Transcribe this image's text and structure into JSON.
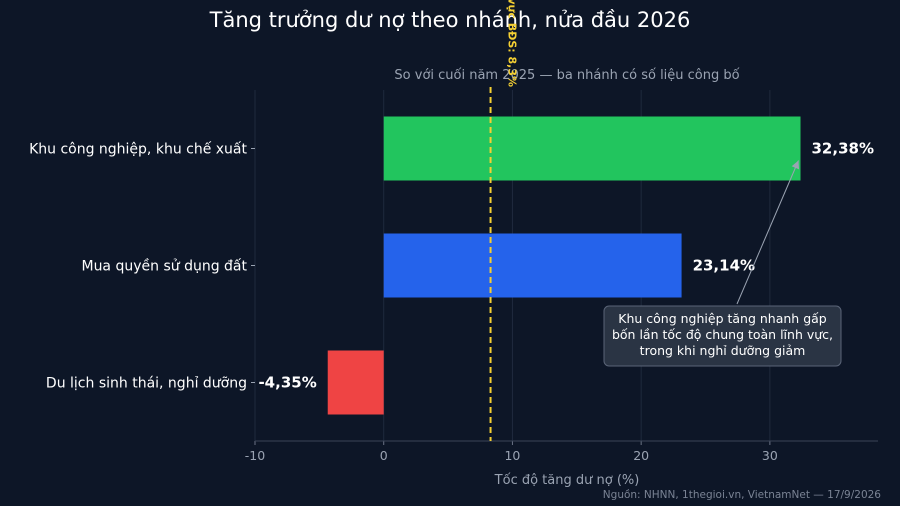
{
  "chart_data": {
    "type": "bar",
    "orientation": "horizontal",
    "title": "Tăng trưởng dư nợ theo nhánh, nửa đầu 2026",
    "subtitle": "So với cuối năm 2025 — ba nhánh có số liệu công bố",
    "xlabel": "Tốc độ tăng dư nợ (%)",
    "ylabel": "",
    "xlim": [
      -10,
      38.4
    ],
    "xticks": [
      -10,
      0,
      10,
      20,
      30
    ],
    "xtick_labels": [
      "-10",
      "0",
      "10",
      "20",
      "30"
    ],
    "grid": "vertical",
    "categories": [
      "Khu công nghiệp, khu chế xuất",
      "Mua quyền sử dụng đất",
      "Du lịch sinh thái, nghỉ dưỡng"
    ],
    "values": [
      32.38,
      23.14,
      -4.35
    ],
    "value_labels": [
      "32,38%",
      "23,14%",
      "-4,35%"
    ],
    "colors": [
      "#22c55e",
      "#2563eb",
      "#ef4444"
    ],
    "reference_line": {
      "value": 8.3,
      "label": "Toàn lĩnh vực BĐS: 8,3%",
      "color": "#f5d033",
      "style": "dashed"
    },
    "annotation": {
      "lines": [
        "Khu công nghiệp tăng nhanh gấp",
        "bốn lần tốc độ chung toàn lĩnh vực,",
        "trong khi nghỉ dưỡng giảm"
      ],
      "points_to": "Khu công nghiệp, khu chế xuất"
    },
    "source": "Nguồn: NHNN, 1thegioi.vn, VietnamNet — 17/9/2026"
  },
  "colors": {
    "background": "#0d1627",
    "text": "#ffffff",
    "muted": "#9aa3b2",
    "grid": "#1f2a3d"
  }
}
